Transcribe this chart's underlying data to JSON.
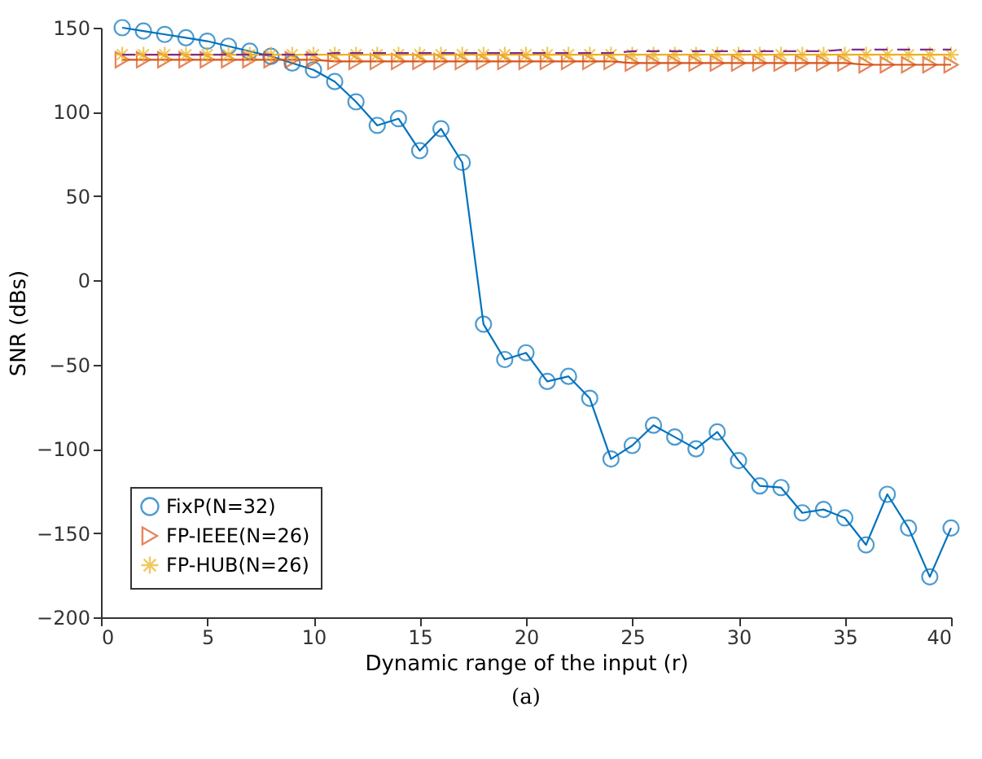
{
  "chart_data": {
    "type": "line",
    "xlabel": "Dynamic range of the input (r)",
    "ylabel": "SNR (dBs)",
    "annotations": [
      "(a)"
    ],
    "x": [
      1,
      2,
      3,
      4,
      5,
      6,
      7,
      8,
      9,
      10,
      11,
      12,
      13,
      14,
      15,
      16,
      17,
      18,
      19,
      20,
      21,
      22,
      23,
      24,
      25,
      26,
      27,
      28,
      29,
      30,
      31,
      32,
      33,
      34,
      35,
      36,
      37,
      38,
      39,
      40
    ],
    "series": [
      {
        "name": "FixP(N=32)",
        "color": "#0072bd",
        "marker": "circle",
        "line_style": "solid",
        "values": [
          150,
          148,
          146,
          144,
          142,
          139,
          136,
          133,
          129,
          125,
          118,
          106,
          92,
          96,
          77,
          90,
          70,
          -26,
          -47,
          -43,
          -60,
          -57,
          -70,
          -106,
          -98,
          -86,
          -93,
          -100,
          -90,
          -107,
          -122,
          -123,
          -138,
          -136,
          -141,
          -157,
          -127,
          -147,
          -176,
          -147
        ]
      },
      {
        "name": "FP-IEEE(N=26)",
        "color": "#d95319",
        "marker": "triangle",
        "line_style": "solid",
        "values": [
          131,
          131,
          131,
          131,
          131,
          131,
          131,
          131,
          131,
          131,
          130,
          130,
          130,
          130,
          130,
          130,
          130,
          130,
          130,
          130,
          130,
          130,
          130,
          130,
          129,
          129,
          129,
          129,
          129,
          129,
          129,
          129,
          129,
          129,
          129,
          128,
          128,
          128,
          128,
          128
        ]
      },
      {
        "name": "FP-HUB(N=26)",
        "color": "#edb120",
        "marker": "cross",
        "line_style": "solid",
        "values": [
          134,
          134,
          134,
          134,
          134,
          134,
          134,
          134,
          134,
          134,
          134,
          134,
          134,
          134,
          134,
          134,
          134,
          134,
          134,
          134,
          134,
          134,
          134,
          134,
          134,
          134,
          134,
          134,
          134,
          134,
          134,
          134,
          134,
          134,
          134,
          134,
          134,
          134,
          134,
          134
        ]
      },
      {
        "color": "#7e2f8e",
        "marker": "none",
        "line_style": "dashed",
        "values": [
          134,
          134,
          134,
          134,
          134,
          134,
          134,
          134,
          134,
          134,
          135,
          135,
          135,
          135,
          135,
          135,
          135,
          135,
          135,
          135,
          135,
          135,
          135,
          135,
          136,
          136,
          136,
          136,
          136,
          136,
          136,
          136,
          136,
          136,
          137,
          137,
          137,
          137,
          137,
          137
        ]
      }
    ],
    "xlim": [
      0,
      40
    ],
    "xticks": [
      0,
      5,
      10,
      15,
      20,
      25,
      30,
      35,
      40
    ],
    "ylim": [
      -200,
      150
    ],
    "yticks": [
      -200,
      -150,
      -100,
      -50,
      0,
      50,
      100,
      150
    ],
    "grid": false,
    "legend": "bottom left"
  }
}
